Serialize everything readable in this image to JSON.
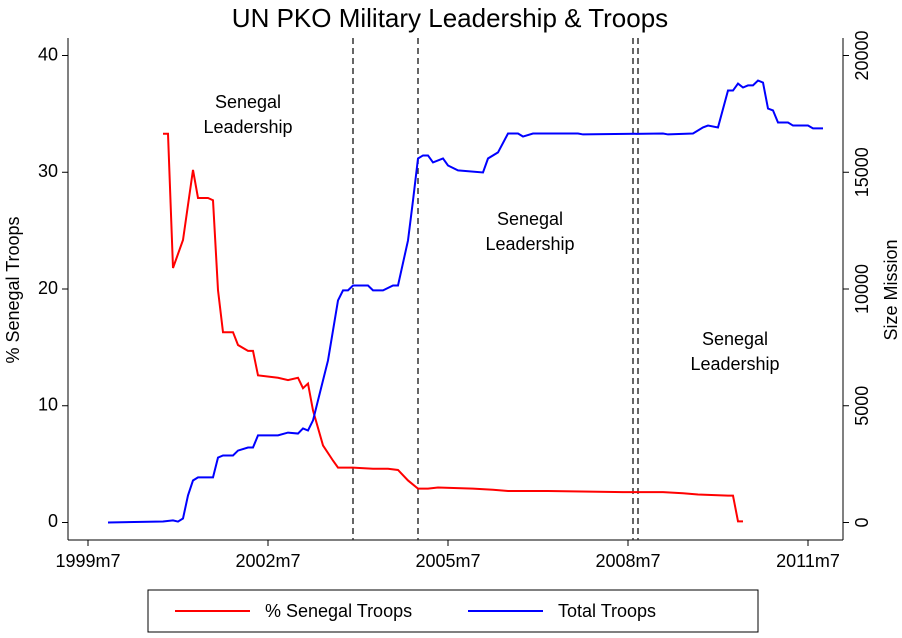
{
  "chart_data": {
    "type": "line",
    "title": "UN PKO Military Leadership &  Troops",
    "ylabel": "% Senegal Troops",
    "y2label": "Size Mission",
    "xlim": [
      "1999m3",
      "2012m2"
    ],
    "xticks": [
      "1999m7",
      "2002m7",
      "2005m7",
      "2008m7",
      "2011m7"
    ],
    "ylim": [
      -1.5,
      41.5
    ],
    "yticks": [
      0,
      10,
      20,
      30,
      40
    ],
    "y2lim": [
      -750,
      20750
    ],
    "y2ticks": [
      0,
      5000,
      10000,
      15000,
      20000
    ],
    "vlines": [
      "2003m12",
      "2005m1",
      "2008m8",
      "2008m9"
    ],
    "annotations": [
      [
        "Senegal",
        "Leadership"
      ],
      [
        "Senegal",
        "Leadership"
      ],
      [
        "Senegal",
        "Leadership"
      ]
    ],
    "legend": "bottom",
    "series": [
      {
        "name": "% Senegal Troops",
        "color": "#ff0000",
        "x": [
          "2000m10",
          "2000m11",
          "2000m12",
          "2001m2",
          "2001m4",
          "2001m5",
          "2001m7",
          "2001m8",
          "2001m9",
          "2001m10",
          "2001m12",
          "2002m1",
          "2002m3",
          "2002m4",
          "2002m5",
          "2002m9",
          "2002m11",
          "2003m1",
          "2003m2",
          "2003m3",
          "2003m4",
          "2003m6",
          "2003m8",
          "2003m9",
          "2003m12",
          "2004m4",
          "2004m7",
          "2004m9",
          "2004m11",
          "2005m1",
          "2005m3",
          "2005m5",
          "2005m12",
          "2006m4",
          "2006m7",
          "2007m3",
          "2008m6",
          "2009m2",
          "2009m6",
          "2009m9",
          "2010m3",
          "2010m4",
          "2010m5",
          "2010m6"
        ],
        "values": [
          33.3,
          33.3,
          21.8,
          24.2,
          30.2,
          27.8,
          27.8,
          27.6,
          19.9,
          16.3,
          16.3,
          15.2,
          14.7,
          14.7,
          12.6,
          12.4,
          12.2,
          12.4,
          11.5,
          11.9,
          9.6,
          6.6,
          5.3,
          4.7,
          4.7,
          4.6,
          4.6,
          4.5,
          3.6,
          2.9,
          2.9,
          3.0,
          2.9,
          2.8,
          2.7,
          2.7,
          2.6,
          2.6,
          2.5,
          2.4,
          2.3,
          2.3,
          0.1,
          0.1
        ]
      },
      {
        "name": "Total Troops",
        "color": "#0000ff",
        "axis": "y2",
        "x": [
          "1999m11",
          "2000m10",
          "2000m12",
          "2001m1",
          "2001m2",
          "2001m3",
          "2001m4",
          "2001m5",
          "2001m8",
          "2001m9",
          "2001m10",
          "2001m12",
          "2002m1",
          "2002m3",
          "2002m4",
          "2002m5",
          "2002m9",
          "2002m11",
          "2003m1",
          "2003m2",
          "2003m3",
          "2003m4",
          "2003m5",
          "2003m7",
          "2003m9",
          "2003m10",
          "2003m11",
          "2003m12",
          "2004m3",
          "2004m4",
          "2004m6",
          "2004m8",
          "2004m9",
          "2004m11",
          "2004m12",
          "2005m1",
          "2005m2",
          "2005m3",
          "2005m4",
          "2005m6",
          "2005m7",
          "2005m9",
          "2006m2",
          "2006m3",
          "2006m5",
          "2006m7",
          "2006m9",
          "2006m10",
          "2006m12",
          "2007m9",
          "2007m10",
          "2009m2",
          "2009m3",
          "2009m8",
          "2009m10",
          "2009m11",
          "2010m1",
          "2010m3",
          "2010m4",
          "2010m5",
          "2010m6",
          "2010m7",
          "2010m8",
          "2010m9",
          "2010m10",
          "2010m11",
          "2010m12",
          "2011m1",
          "2011m3",
          "2011m4",
          "2011m7",
          "2011m8",
          "2011m10"
        ],
        "values": [
          0,
          40,
          90,
          40,
          170,
          1160,
          1800,
          1930,
          1930,
          2780,
          2870,
          2870,
          3080,
          3210,
          3210,
          3730,
          3730,
          3850,
          3810,
          4030,
          3940,
          4370,
          5230,
          6940,
          9510,
          9940,
          9940,
          10150,
          10150,
          9940,
          9940,
          10150,
          10150,
          12080,
          13790,
          15590,
          15720,
          15720,
          15420,
          15590,
          15290,
          15080,
          14990,
          15590,
          15850,
          16660,
          16660,
          16530,
          16660,
          16660,
          16620,
          16660,
          16620,
          16660,
          16920,
          17000,
          16920,
          18500,
          18500,
          18800,
          18630,
          18720,
          18720,
          18930,
          18840,
          17730,
          17650,
          17130,
          17130,
          17000,
          17000,
          16880,
          16880
        ]
      }
    ]
  }
}
